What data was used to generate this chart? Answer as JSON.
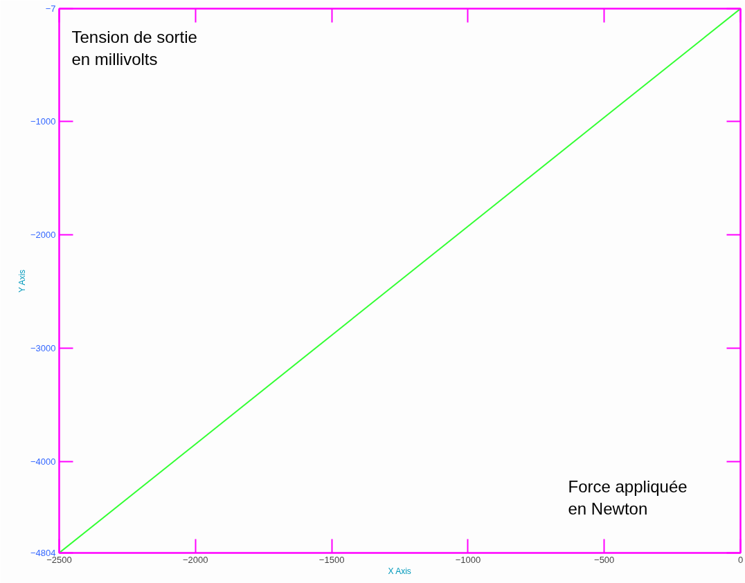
{
  "chart_data": {
    "type": "line",
    "xlabel": "X Axis",
    "ylabel": "Y Axis",
    "annotations": [
      "Tension de sortie en millivolts",
      "Force appliquée en Newton"
    ],
    "x": [
      -2500,
      -2000,
      -1500,
      -1000,
      -500,
      0
    ],
    "series": [
      {
        "color": "#33ff33",
        "values": [
          -4804,
          -3845,
          -2885,
          -1926,
          -966,
          -7
        ]
      }
    ],
    "xlim": [
      -2500,
      0
    ],
    "ylim": [
      -4804,
      -7
    ],
    "xticks": [
      -2500,
      -2000,
      -1500,
      -1000,
      -500,
      0
    ],
    "yticks": [
      -4804,
      -4000,
      -3000,
      -2000,
      -1000,
      -7
    ],
    "grid": false,
    "marker": "none",
    "line_style": "solid"
  }
}
